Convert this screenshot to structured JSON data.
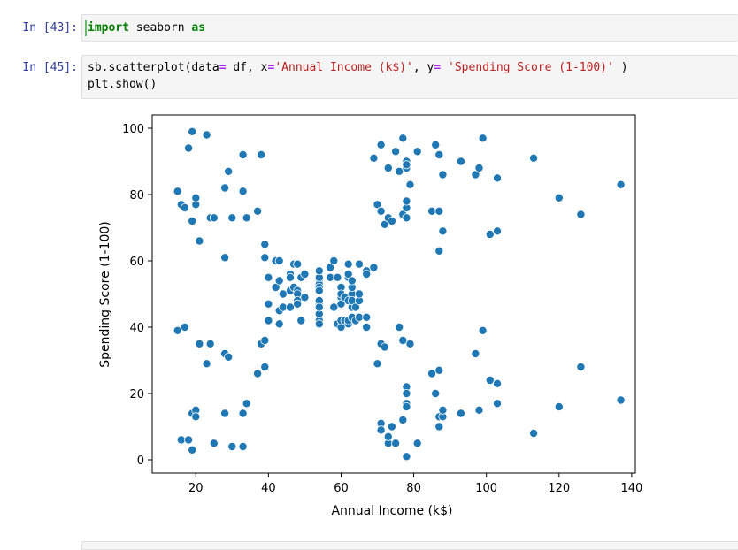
{
  "cells": [
    {
      "prompt": "In [43]:",
      "tokens": [
        {
          "t": "import",
          "c": "kw"
        },
        {
          "t": " seaborn ",
          "c": ""
        },
        {
          "t": "as",
          "c": "kw"
        }
      ]
    },
    {
      "prompt": "In [45]:",
      "line1": [
        {
          "t": "sb.scatterplot(data",
          "c": ""
        },
        {
          "t": "=",
          "c": "op"
        },
        {
          "t": " df, x",
          "c": ""
        },
        {
          "t": "=",
          "c": "op"
        },
        {
          "t": "'Annual Income (k$)'",
          "c": "str"
        },
        {
          "t": ", y",
          "c": ""
        },
        {
          "t": "=",
          "c": "op"
        },
        {
          "t": " ",
          "c": ""
        },
        {
          "t": "'Spending Score (1-100)'",
          "c": "str"
        },
        {
          "t": " )",
          "c": ""
        }
      ],
      "line2": [
        {
          "t": "plt.show()",
          "c": ""
        }
      ]
    }
  ],
  "chart_data": {
    "type": "scatter",
    "xlabel": "Annual Income (k$)",
    "ylabel": "Spending Score (1-100)",
    "xlim": [
      8,
      141
    ],
    "ylim": [
      -4,
      104
    ],
    "xticks": [
      20,
      40,
      60,
      80,
      100,
      120,
      140
    ],
    "yticks": [
      0,
      20,
      40,
      60,
      80,
      100
    ],
    "grid": false,
    "point_color": "#1f77b4",
    "points": [
      [
        15,
        39
      ],
      [
        15,
        81
      ],
      [
        16,
        6
      ],
      [
        16,
        77
      ],
      [
        17,
        40
      ],
      [
        17,
        76
      ],
      [
        18,
        6
      ],
      [
        18,
        94
      ],
      [
        19,
        3
      ],
      [
        19,
        72
      ],
      [
        19,
        14
      ],
      [
        19,
        99
      ],
      [
        20,
        15
      ],
      [
        20,
        77
      ],
      [
        20,
        13
      ],
      [
        20,
        79
      ],
      [
        21,
        35
      ],
      [
        21,
        66
      ],
      [
        23,
        29
      ],
      [
        23,
        98
      ],
      [
        24,
        35
      ],
      [
        24,
        73
      ],
      [
        25,
        5
      ],
      [
        25,
        73
      ],
      [
        28,
        14
      ],
      [
        28,
        82
      ],
      [
        28,
        32
      ],
      [
        28,
        61
      ],
      [
        29,
        31
      ],
      [
        29,
        87
      ],
      [
        30,
        4
      ],
      [
        30,
        73
      ],
      [
        33,
        4
      ],
      [
        33,
        92
      ],
      [
        33,
        14
      ],
      [
        33,
        81
      ],
      [
        34,
        17
      ],
      [
        34,
        73
      ],
      [
        37,
        26
      ],
      [
        37,
        75
      ],
      [
        38,
        35
      ],
      [
        38,
        92
      ],
      [
        39,
        36
      ],
      [
        39,
        61
      ],
      [
        39,
        28
      ],
      [
        39,
        65
      ],
      [
        40,
        55
      ],
      [
        40,
        47
      ],
      [
        40,
        42
      ],
      [
        40,
        42
      ],
      [
        42,
        52
      ],
      [
        42,
        60
      ],
      [
        43,
        54
      ],
      [
        43,
        60
      ],
      [
        43,
        45
      ],
      [
        43,
        41
      ],
      [
        44,
        50
      ],
      [
        44,
        46
      ],
      [
        46,
        51
      ],
      [
        46,
        46
      ],
      [
        46,
        56
      ],
      [
        46,
        55
      ],
      [
        47,
        52
      ],
      [
        47,
        59
      ],
      [
        48,
        51
      ],
      [
        48,
        59
      ],
      [
        48,
        50
      ],
      [
        48,
        48
      ],
      [
        48,
        59
      ],
      [
        48,
        47
      ],
      [
        49,
        55
      ],
      [
        49,
        42
      ],
      [
        50,
        49
      ],
      [
        50,
        56
      ],
      [
        54,
        47
      ],
      [
        54,
        54
      ],
      [
        54,
        53
      ],
      [
        54,
        48
      ],
      [
        54,
        52
      ],
      [
        54,
        42
      ],
      [
        54,
        51
      ],
      [
        54,
        55
      ],
      [
        54,
        41
      ],
      [
        54,
        44
      ],
      [
        54,
        57
      ],
      [
        54,
        46
      ],
      [
        57,
        58
      ],
      [
        57,
        55
      ],
      [
        58,
        60
      ],
      [
        58,
        46
      ],
      [
        59,
        55
      ],
      [
        59,
        41
      ],
      [
        60,
        49
      ],
      [
        60,
        40
      ],
      [
        60,
        42
      ],
      [
        60,
        52
      ],
      [
        60,
        47
      ],
      [
        60,
        50
      ],
      [
        61,
        42
      ],
      [
        61,
        49
      ],
      [
        62,
        41
      ],
      [
        62,
        48
      ],
      [
        62,
        59
      ],
      [
        62,
        55
      ],
      [
        62,
        56
      ],
      [
        62,
        42
      ],
      [
        63,
        50
      ],
      [
        63,
        46
      ],
      [
        63,
        43
      ],
      [
        63,
        48
      ],
      [
        63,
        52
      ],
      [
        63,
        54
      ],
      [
        64,
        42
      ],
      [
        64,
        46
      ],
      [
        65,
        48
      ],
      [
        65,
        50
      ],
      [
        65,
        43
      ],
      [
        65,
        59
      ],
      [
        67,
        43
      ],
      [
        67,
        57
      ],
      [
        67,
        56
      ],
      [
        67,
        40
      ],
      [
        69,
        58
      ],
      [
        69,
        91
      ],
      [
        70,
        29
      ],
      [
        70,
        77
      ],
      [
        71,
        35
      ],
      [
        71,
        95
      ],
      [
        71,
        11
      ],
      [
        71,
        75
      ],
      [
        71,
        9
      ],
      [
        71,
        75
      ],
      [
        72,
        34
      ],
      [
        72,
        71
      ],
      [
        73,
        5
      ],
      [
        73,
        88
      ],
      [
        73,
        7
      ],
      [
        73,
        73
      ],
      [
        74,
        10
      ],
      [
        74,
        72
      ],
      [
        75,
        5
      ],
      [
        75,
        93
      ],
      [
        76,
        40
      ],
      [
        76,
        87
      ],
      [
        77,
        12
      ],
      [
        77,
        97
      ],
      [
        77,
        36
      ],
      [
        77,
        74
      ],
      [
        78,
        22
      ],
      [
        78,
        90
      ],
      [
        78,
        17
      ],
      [
        78,
        88
      ],
      [
        78,
        20
      ],
      [
        78,
        76
      ],
      [
        78,
        16
      ],
      [
        78,
        89
      ],
      [
        78,
        1
      ],
      [
        78,
        78
      ],
      [
        78,
        1
      ],
      [
        78,
        73
      ],
      [
        79,
        35
      ],
      [
        79,
        83
      ],
      [
        81,
        5
      ],
      [
        81,
        93
      ],
      [
        85,
        26
      ],
      [
        85,
        75
      ],
      [
        86,
        20
      ],
      [
        86,
        95
      ],
      [
        87,
        27
      ],
      [
        87,
        63
      ],
      [
        87,
        13
      ],
      [
        87,
        75
      ],
      [
        87,
        10
      ],
      [
        87,
        92
      ],
      [
        88,
        13
      ],
      [
        88,
        86
      ],
      [
        88,
        15
      ],
      [
        88,
        69
      ],
      [
        93,
        14
      ],
      [
        93,
        90
      ],
      [
        97,
        32
      ],
      [
        97,
        86
      ],
      [
        98,
        15
      ],
      [
        98,
        88
      ],
      [
        99,
        39
      ],
      [
        99,
        97
      ],
      [
        101,
        24
      ],
      [
        101,
        68
      ],
      [
        103,
        17
      ],
      [
        103,
        85
      ],
      [
        103,
        23
      ],
      [
        103,
        69
      ],
      [
        113,
        8
      ],
      [
        113,
        91
      ],
      [
        120,
        16
      ],
      [
        120,
        79
      ],
      [
        126,
        28
      ],
      [
        126,
        74
      ],
      [
        137,
        18
      ],
      [
        137,
        83
      ]
    ]
  }
}
